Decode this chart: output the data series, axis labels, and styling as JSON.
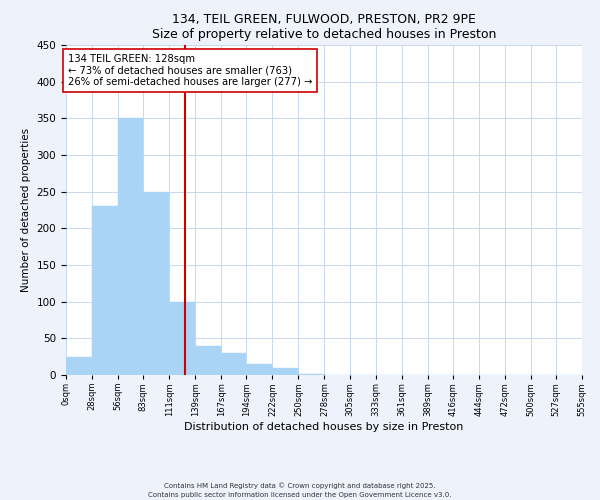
{
  "title": "134, TEIL GREEN, FULWOOD, PRESTON, PR2 9PE",
  "subtitle": "Size of property relative to detached houses in Preston",
  "xlabel": "Distribution of detached houses by size in Preston",
  "ylabel": "Number of detached properties",
  "bin_edges": [
    0,
    28,
    56,
    83,
    111,
    139,
    167,
    194,
    222,
    250,
    278,
    305,
    333,
    361,
    389,
    416,
    444,
    472,
    500,
    527,
    555
  ],
  "bar_heights": [
    25,
    230,
    350,
    250,
    100,
    40,
    30,
    15,
    10,
    2,
    0,
    0,
    0,
    0,
    0,
    0,
    0,
    0,
    0,
    0
  ],
  "bar_color": "#aad4f5",
  "bar_edge_color": "#aad4f5",
  "property_size": 128,
  "property_line_color": "#cc0000",
  "annotation_line1": "134 TEIL GREEN: 128sqm",
  "annotation_line2": "← 73% of detached houses are smaller (763)",
  "annotation_line3": "26% of semi-detached houses are larger (277) →",
  "annotation_box_color": "#ffffff",
  "annotation_box_edge": "#cc0000",
  "ylim": [
    0,
    450
  ],
  "yticks": [
    0,
    50,
    100,
    150,
    200,
    250,
    300,
    350,
    400,
    450
  ],
  "tick_labels": [
    "0sqm",
    "28sqm",
    "56sqm",
    "83sqm",
    "111sqm",
    "139sqm",
    "167sqm",
    "194sqm",
    "222sqm",
    "250sqm",
    "278sqm",
    "305sqm",
    "333sqm",
    "361sqm",
    "389sqm",
    "416sqm",
    "444sqm",
    "472sqm",
    "500sqm",
    "527sqm",
    "555sqm"
  ],
  "footer_line1": "Contains HM Land Registry data © Crown copyright and database right 2025.",
  "footer_line2": "Contains public sector information licensed under the Open Government Licence v3.0.",
  "background_color": "#eef2fb",
  "plot_bg_color": "#ffffff",
  "grid_color": "#c8d8f0"
}
